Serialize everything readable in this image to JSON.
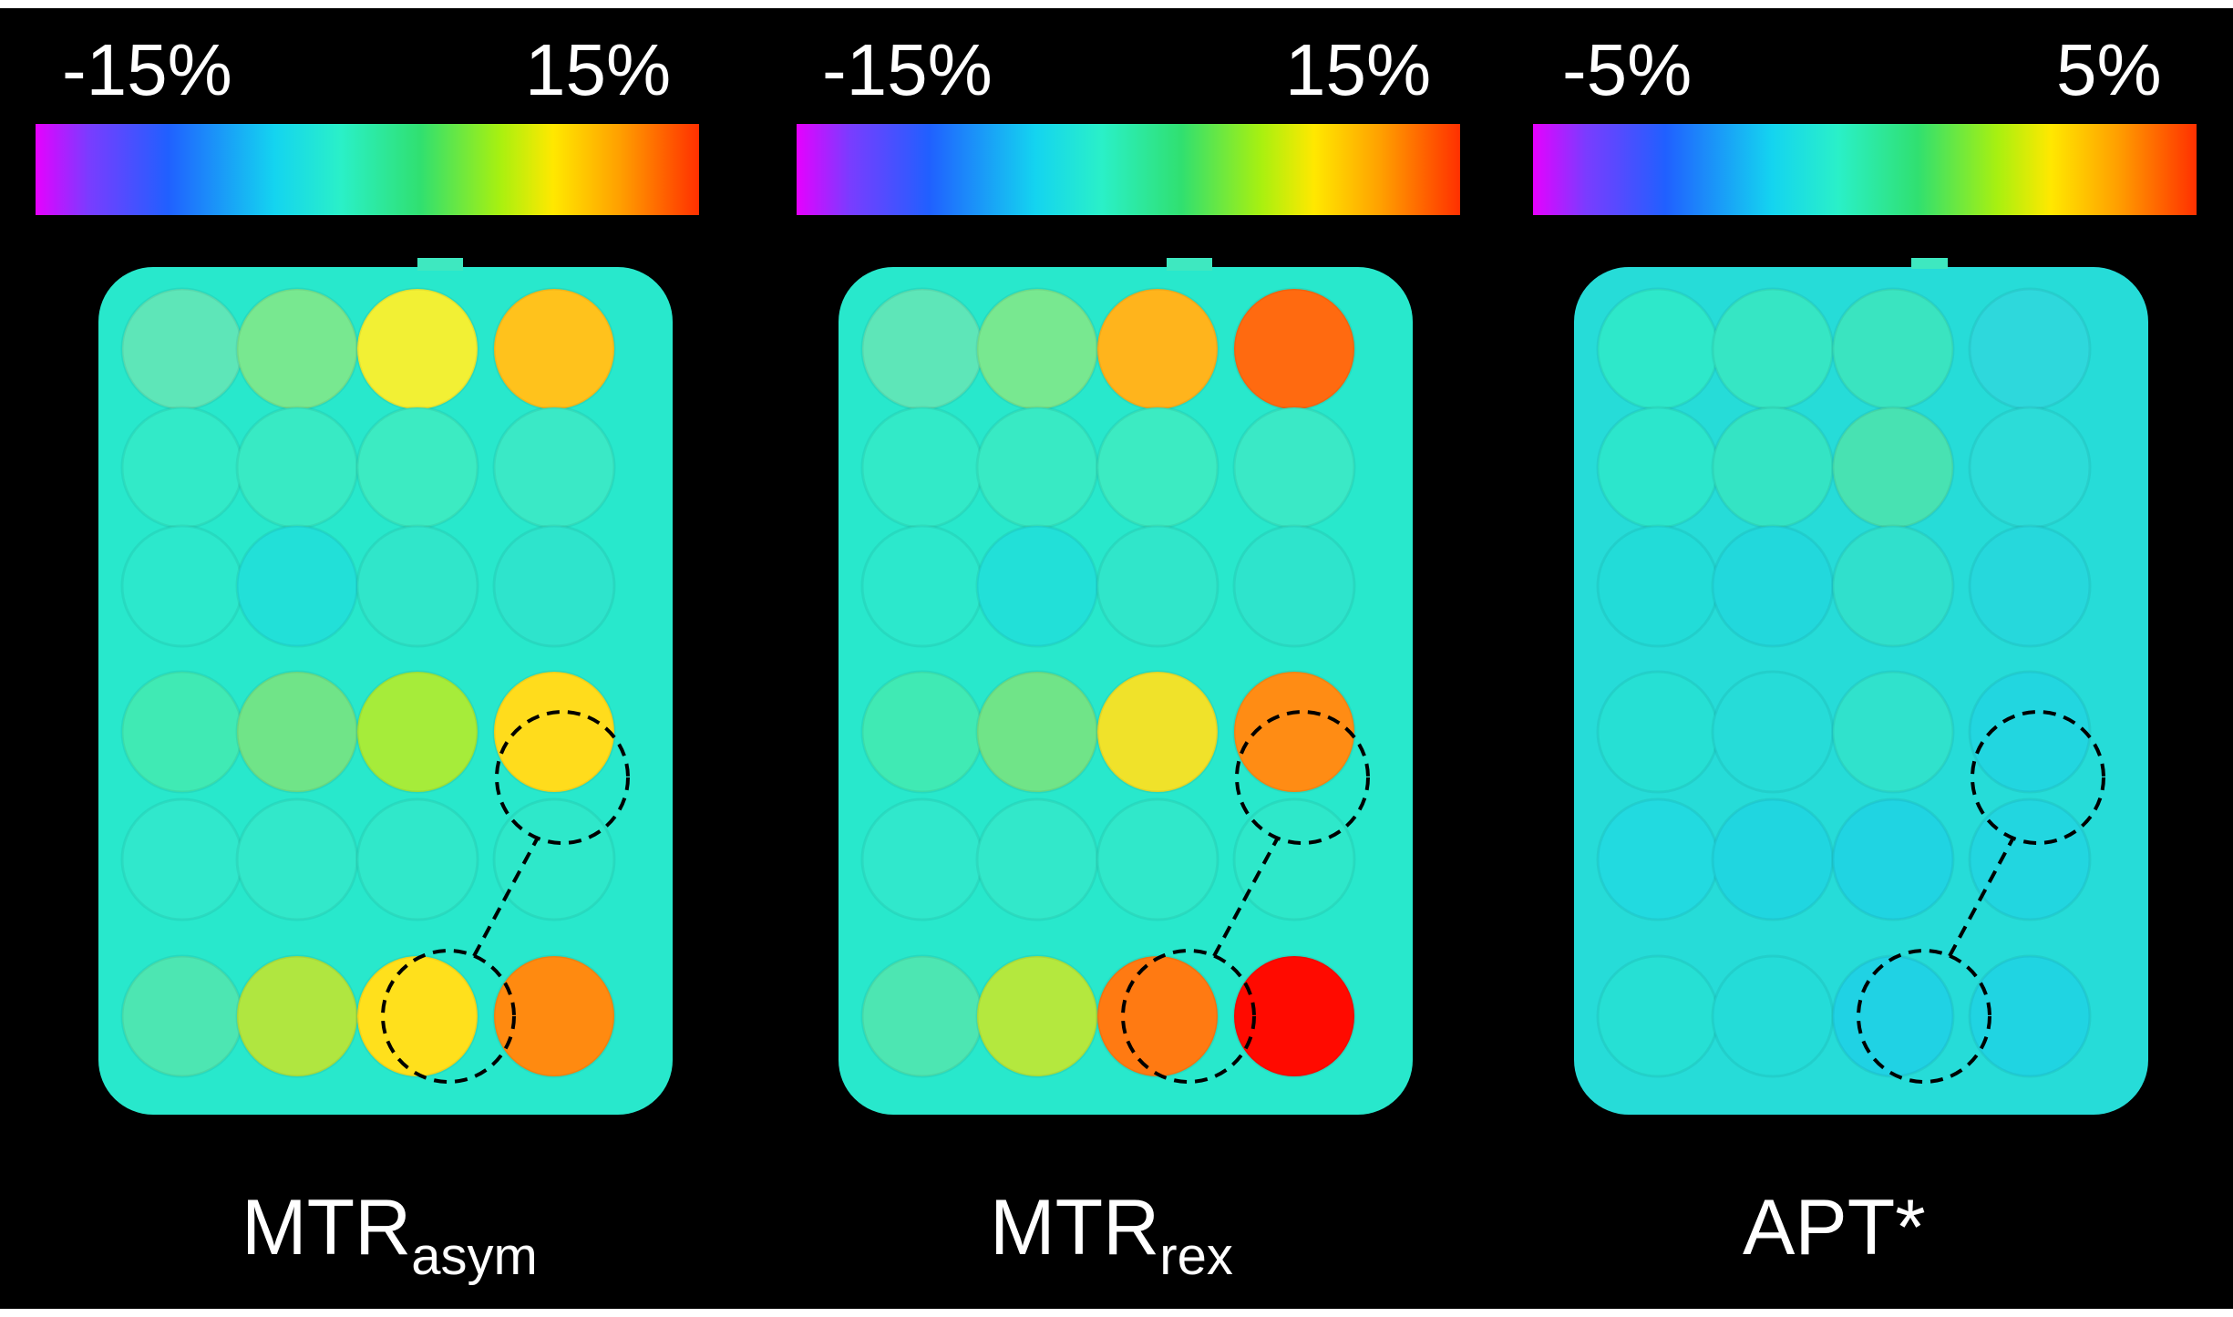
{
  "panels": [
    {
      "colorbar_min": "-15%",
      "colorbar_max": "15%",
      "caption_main": "MTR",
      "caption_sub": "asym",
      "wells": [
        [
          "#5ee6b8",
          "#78e890",
          "#f2f034",
          "#ffc21c"
        ],
        [
          "#32eac8",
          "#38eac4",
          "#3cebc2",
          "#3ae9c6"
        ],
        [
          "#2ce8cc",
          "#22e0d8",
          "#30e6ca",
          "#2ee4cc"
        ],
        [
          "#40eab4",
          "#70e488",
          "#a6ec3a",
          "#ffdc1c"
        ],
        [
          "#30e8cc",
          "#32e8ca",
          "#30e8ca",
          "#2ee8ca"
        ],
        [
          "#4de6b2",
          "#b0e640",
          "#ffe01c",
          "#ff8a10"
        ]
      ]
    },
    {
      "colorbar_min": "-15%",
      "colorbar_max": "15%",
      "caption_main": "MTR",
      "caption_sub": "rex",
      "wells": [
        [
          "#5ee6b8",
          "#78e890",
          "#ffb41c",
          "#ff6a10"
        ],
        [
          "#32eac8",
          "#38eac4",
          "#3cebc2",
          "#3ae9c6"
        ],
        [
          "#2ce8cc",
          "#22e0d8",
          "#30e6ca",
          "#2ee4cc"
        ],
        [
          "#40eab4",
          "#70e488",
          "#f0e22a",
          "#ff8c14"
        ],
        [
          "#30e8cc",
          "#32e8ca",
          "#30e8ca",
          "#2ee8ca"
        ],
        [
          "#4de6b2",
          "#b4e83e",
          "#ff7a12",
          "#ff0a00"
        ]
      ]
    },
    {
      "colorbar_min": "-5%",
      "colorbar_max": "5%",
      "caption_main": "APT*",
      "caption_sub": "",
      "wells": [
        [
          "#2ee8ca",
          "#36e6c4",
          "#3ae4c0",
          "#2ed8dc"
        ],
        [
          "#2ce6cc",
          "#34e4c4",
          "#48e2b2",
          "#2cdcd8"
        ],
        [
          "#22dcd8",
          "#22d8dc",
          "#30e0cc",
          "#26d8dc"
        ],
        [
          "#26e0d4",
          "#26dcd8",
          "#30e2cc",
          "#22d6e0"
        ],
        [
          "#22dae0",
          "#20d6e0",
          "#20d4e2",
          "#22d6e0"
        ],
        [
          "#26e0d4",
          "#24dcd8",
          "#20d2e4",
          "#20d4e2"
        ]
      ]
    }
  ]
}
